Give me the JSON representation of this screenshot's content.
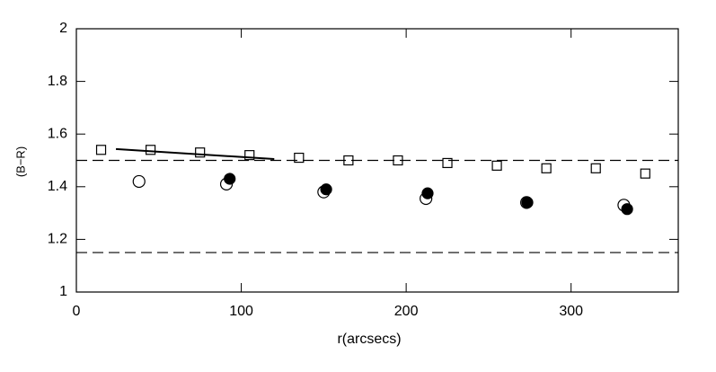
{
  "chart_data": {
    "type": "scatter",
    "x_label": "r(arcsecs)",
    "y_label": "(B−R)",
    "xlim": [
      0,
      365
    ],
    "ylim": [
      1,
      2
    ],
    "xticks": [
      0,
      100,
      200,
      300
    ],
    "yticks": [
      1,
      1.2,
      1.4,
      1.6,
      1.8,
      2
    ],
    "hlines": [
      1.5,
      1.15
    ],
    "series": [
      {
        "marker": "open-square",
        "color": "#000000",
        "x": [
          15,
          45,
          75,
          105,
          135,
          165,
          195,
          225,
          255,
          285,
          315,
          345
        ],
        "values": [
          1.54,
          1.54,
          1.53,
          1.52,
          1.51,
          1.5,
          1.5,
          1.49,
          1.48,
          1.47,
          1.47,
          1.45
        ]
      },
      {
        "marker": "open-circle",
        "color": "#000000",
        "x": [
          38,
          91,
          150,
          212,
          273,
          332
        ],
        "values": [
          1.42,
          1.41,
          1.38,
          1.355,
          1.34,
          1.33
        ]
      },
      {
        "marker": "filled-circle",
        "color": "#000000",
        "x": [
          93,
          151.5,
          213,
          273.5,
          334
        ],
        "values": [
          1.43,
          1.39,
          1.375,
          1.34,
          1.315
        ]
      },
      {
        "marker": "line",
        "color": "#000000",
        "x": [
          24,
          120
        ],
        "values": [
          1.543,
          1.505
        ]
      }
    ]
  }
}
